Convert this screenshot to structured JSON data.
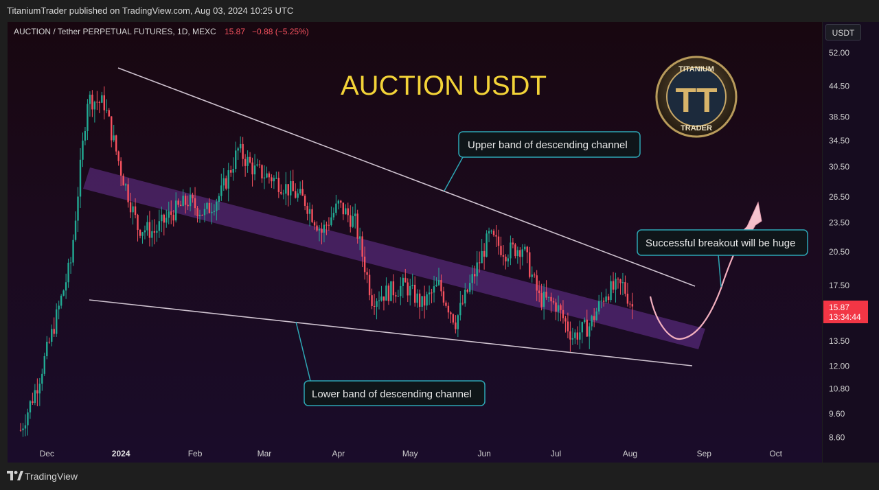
{
  "header": {
    "publisher_line": "TitaniumTrader published on TradingView.com, Aug 03, 2024 10:25 UTC"
  },
  "symbol_line": {
    "title": "AUCTION / Tether PERPETUAL FUTURES, 1D, MEXC",
    "price": "15.87",
    "change": "−0.88 (−5.25%)"
  },
  "watermark_title": "AUCTION USDT",
  "logo": {
    "top_text": "TITANIUM",
    "bottom_text": "TRADER",
    "monogram": "TT"
  },
  "annotations": {
    "upper": "Upper band of descending channel",
    "lower": "Lower band of descending channel",
    "breakout": "Successful breakout will be huge"
  },
  "price_scale": {
    "currency": "USDT",
    "ticks": [
      "52.00",
      "44.50",
      "38.50",
      "34.50",
      "30.50",
      "26.50",
      "23.50",
      "20.50",
      "17.50",
      "13.50",
      "12.00",
      "10.80",
      "9.60",
      "8.60"
    ],
    "last_price": "15.87",
    "countdown": "13:34:44"
  },
  "time_axis": [
    "Dec",
    "2024",
    "Feb",
    "Mar",
    "Apr",
    "May",
    "Jun",
    "Jul",
    "Aug",
    "Sep",
    "Oct"
  ],
  "footer": {
    "brand": "TradingView"
  },
  "colors": {
    "up": "#22ab94",
    "down": "#f7525f",
    "title": "#f3d338",
    "band": "#8b44c8"
  },
  "chart_data": {
    "type": "candlestick",
    "title": "AUCTION / Tether PERPETUAL FUTURES, 1D, MEXC",
    "y_scale": "log",
    "ylim": [
      8.4,
      58
    ],
    "x_range": [
      "2023-11-20",
      "2024-10-11"
    ],
    "xlabel": "",
    "ylabel": "",
    "legend": "none",
    "closes_weekly": [
      {
        "date": "2023-11-20",
        "close": 8.9
      },
      {
        "date": "2023-11-27",
        "close": 11.0
      },
      {
        "date": "2023-12-04",
        "close": 14.5
      },
      {
        "date": "2023-12-11",
        "close": 19.5
      },
      {
        "date": "2023-12-18",
        "close": 42.0
      },
      {
        "date": "2023-12-25",
        "close": 41.0
      },
      {
        "date": "2024-01-01",
        "close": 30.0
      },
      {
        "date": "2024-01-08",
        "close": 23.0
      },
      {
        "date": "2024-01-15",
        "close": 22.5
      },
      {
        "date": "2024-01-22",
        "close": 24.5
      },
      {
        "date": "2024-01-29",
        "close": 26.0
      },
      {
        "date": "2024-02-05",
        "close": 24.5
      },
      {
        "date": "2024-02-12",
        "close": 27.0
      },
      {
        "date": "2024-02-19",
        "close": 33.0
      },
      {
        "date": "2024-02-26",
        "close": 30.0
      },
      {
        "date": "2024-03-04",
        "close": 29.0
      },
      {
        "date": "2024-03-11",
        "close": 27.5
      },
      {
        "date": "2024-03-18",
        "close": 26.0
      },
      {
        "date": "2024-03-25",
        "close": 22.5
      },
      {
        "date": "2024-04-01",
        "close": 25.5
      },
      {
        "date": "2024-04-08",
        "close": 23.5
      },
      {
        "date": "2024-04-15",
        "close": 16.5
      },
      {
        "date": "2024-04-22",
        "close": 17.0
      },
      {
        "date": "2024-04-29",
        "close": 17.5
      },
      {
        "date": "2024-05-06",
        "close": 16.0
      },
      {
        "date": "2024-05-13",
        "close": 17.5
      },
      {
        "date": "2024-05-20",
        "close": 14.8
      },
      {
        "date": "2024-05-27",
        "close": 18.0
      },
      {
        "date": "2024-06-03",
        "close": 22.0
      },
      {
        "date": "2024-06-10",
        "close": 20.5
      },
      {
        "date": "2024-06-17",
        "close": 21.0
      },
      {
        "date": "2024-06-24",
        "close": 16.5
      },
      {
        "date": "2024-07-01",
        "close": 16.0
      },
      {
        "date": "2024-07-08",
        "close": 13.8
      },
      {
        "date": "2024-07-15",
        "close": 14.5
      },
      {
        "date": "2024-07-22",
        "close": 17.0
      },
      {
        "date": "2024-07-29",
        "close": 17.5
      },
      {
        "date": "2024-08-02",
        "close": 15.87
      }
    ],
    "upper_trendline": [
      {
        "date": "2023-12-21",
        "price": 48.0
      },
      {
        "date": "2024-08-23",
        "price": 17.8
      }
    ],
    "lower_trendline": [
      {
        "date": "2023-12-09",
        "price": 16.3
      },
      {
        "date": "2024-08-23",
        "price": 12.1
      }
    ],
    "projection_path": [
      {
        "date": "2024-08-03",
        "price": 15.5
      },
      {
        "date": "2024-08-15",
        "price": 13.7
      },
      {
        "date": "2024-08-28",
        "price": 16.5
      },
      {
        "date": "2024-09-05",
        "price": 24.8
      }
    ]
  }
}
